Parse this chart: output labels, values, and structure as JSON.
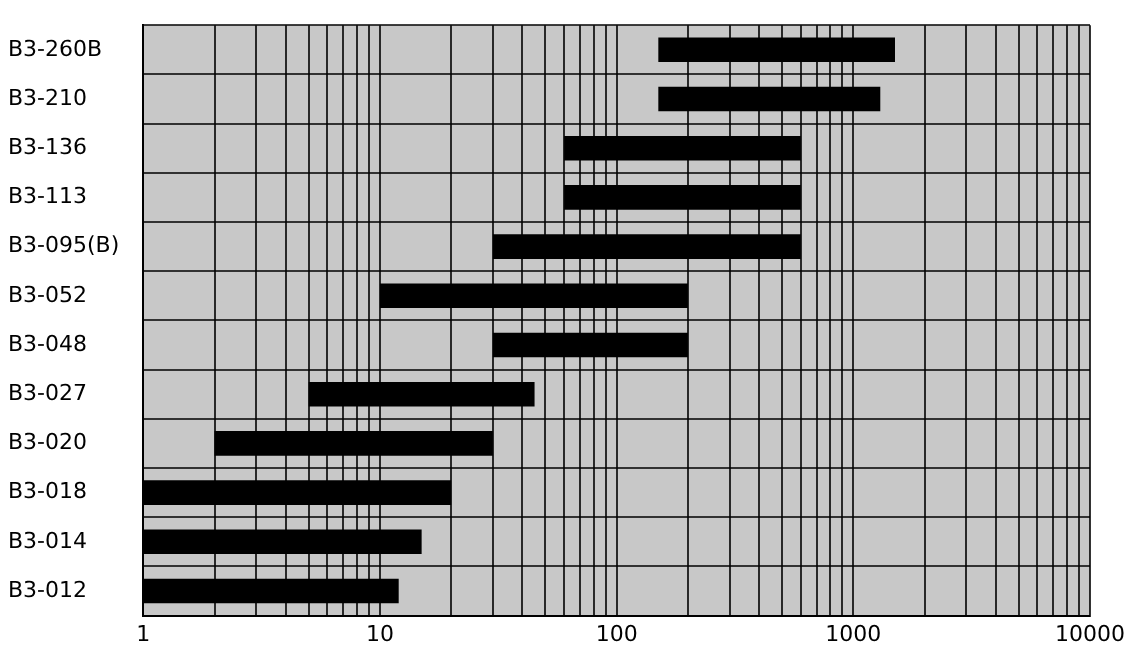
{
  "chart_data": {
    "type": "bar",
    "orientation": "horizontal",
    "log": "x",
    "categories": [
      "B3-260B",
      "B3-210",
      "B3-136",
      "B3-113",
      "B3-095(B)",
      "B3-052",
      "B3-048",
      "B3-027",
      "B3-020",
      "B3-018",
      "B3-014",
      "B3-012"
    ],
    "base": [
      150,
      150,
      60,
      60,
      30,
      10,
      30,
      5,
      2,
      1,
      1,
      1
    ],
    "values": [
      1350,
      1150,
      540,
      540,
      570,
      190,
      170,
      40,
      28,
      19,
      14,
      11
    ],
    "color": "#000000",
    "xlim": [
      1,
      10000
    ],
    "xticks": [
      1,
      {
        "value": 2,
        "label": null
      },
      {
        "value": 3,
        "label": null
      },
      {
        "value": 4,
        "label": null
      },
      {
        "value": 5,
        "label": null
      },
      {
        "value": 6,
        "label": null
      },
      {
        "value": 7,
        "label": null
      },
      {
        "value": 8,
        "label": null
      },
      {
        "value": 9,
        "label": null
      },
      10,
      {
        "value": 20,
        "label": null
      },
      {
        "value": 30,
        "label": null
      },
      {
        "value": 40,
        "label": null
      },
      {
        "value": 50,
        "label": null
      },
      {
        "value": 60,
        "label": null
      },
      {
        "value": 70,
        "label": null
      },
      {
        "value": 80,
        "label": null
      },
      {
        "value": 90,
        "label": null
      },
      100,
      {
        "value": 200,
        "label": null
      },
      {
        "value": 300,
        "label": null
      },
      {
        "value": 400,
        "label": null
      },
      {
        "value": 500,
        "label": null
      },
      {
        "value": 600,
        "label": null
      },
      {
        "value": 700,
        "label": null
      },
      {
        "value": 800,
        "label": null
      },
      {
        "value": 900,
        "label": null
      },
      1000,
      {
        "value": 2000,
        "label": null
      },
      {
        "value": 3000,
        "label": null
      },
      {
        "value": 4000,
        "label": null
      },
      {
        "value": 5000,
        "label": null
      },
      {
        "value": 6000,
        "label": null
      },
      {
        "value": 7000,
        "label": null
      },
      {
        "value": 8000,
        "label": null
      },
      {
        "value": 9000,
        "label": null
      },
      10000
    ],
    "grid": true,
    "legend": false
  }
}
